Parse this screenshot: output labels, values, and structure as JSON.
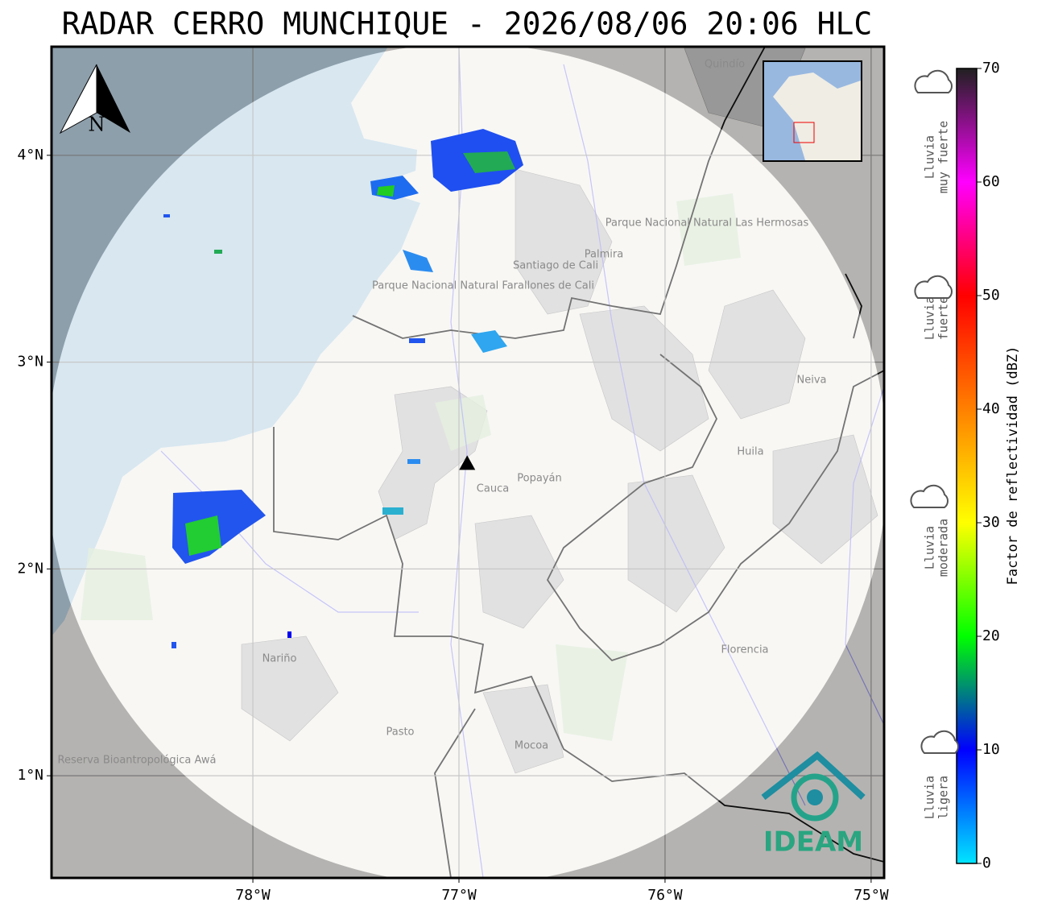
{
  "title": "RADAR CERRO MUNCHIQUE - 2026/08/06 20:06 HLC",
  "map": {
    "xlim": [
      -78.977,
      -74.937
    ],
    "ylim": [
      0.506,
      4.525
    ],
    "xticks": [
      {
        "value": -78,
        "label": "78°W"
      },
      {
        "value": -77,
        "label": "77°W"
      },
      {
        "value": -76,
        "label": "76°W"
      },
      {
        "value": -75,
        "label": "75°W"
      }
    ],
    "yticks": [
      {
        "value": 1,
        "label": "1°N"
      },
      {
        "value": 2,
        "label": "2°N"
      },
      {
        "value": 3,
        "label": "3°N"
      },
      {
        "value": 4,
        "label": "4°N"
      }
    ],
    "radar_site": {
      "lon": -76.96,
      "lat": 2.51
    },
    "north": "N",
    "logo": "IDEAM",
    "places": [
      "Santiago de Cali",
      "Palmira",
      "Popayán",
      "Cauca",
      "Huila",
      "Neiva",
      "Nariño",
      "Pasto",
      "Mocoa",
      "Florencia",
      "Parque Nacional Natural Farallones de Cali",
      "Parque Nacional Natural Las Hermosas",
      "Reserva Bioantropológica Awá",
      "Quindío"
    ]
  },
  "colorbar": {
    "label": "Factor de reflectividad (dBZ)",
    "lim": [
      0,
      70
    ],
    "ticks": [
      0,
      10,
      20,
      30,
      40,
      50,
      60,
      70
    ],
    "colors": [
      "#00e5ff",
      "#0000ff",
      "#00ff00",
      "#ffff00",
      "#ff8000",
      "#ff0000",
      "#ff00ff",
      "#202020"
    ]
  },
  "rain_classes": [
    [
      "Lluvia",
      "muy fuerte"
    ],
    [
      "Lluvia",
      "fuerte"
    ],
    [
      "Lluvia",
      "moderada"
    ],
    [
      "Lluvia",
      "ligera"
    ]
  ]
}
